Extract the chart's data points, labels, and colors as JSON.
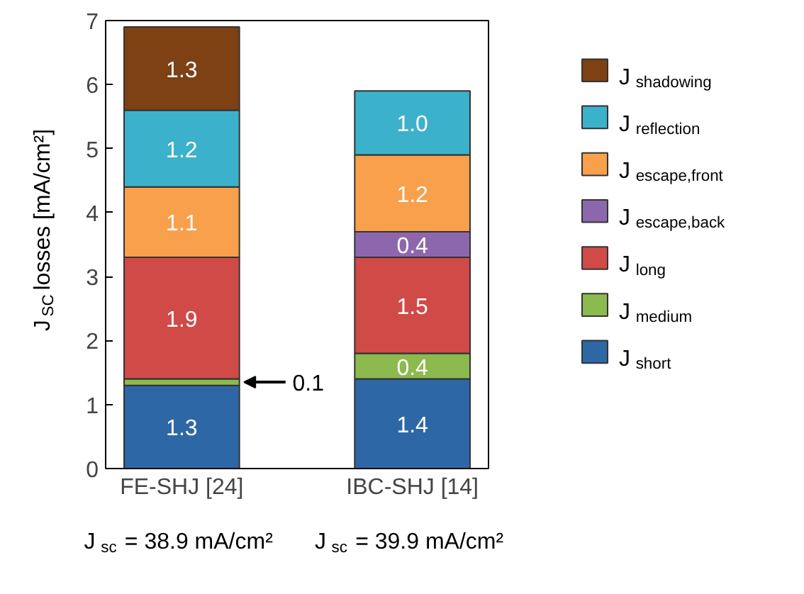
{
  "chart_data": {
    "type": "bar",
    "stacked": true,
    "ylabel": "J$_{SC}$ losses [mA/cm²]",
    "categories": [
      "FE-SHJ [24]",
      "IBC-SHJ [14]"
    ],
    "annotations": [
      "J$_{sc}$ = 38.9 mA/cm²",
      "J$_{sc}$ = 39.9 mA/cm²"
    ],
    "series": [
      {
        "name": "J$_{short}$",
        "color": "#2e67a6",
        "values": [
          1.3,
          1.4
        ],
        "value_labels": [
          "1.3",
          "1.4"
        ]
      },
      {
        "name": "J$_{medium}$",
        "color": "#8cba4e",
        "values": [
          0.1,
          0.4
        ],
        "value_labels": [
          "0.1",
          "0.4"
        ]
      },
      {
        "name": "J$_{long}$",
        "color": "#d04a47",
        "values": [
          1.9,
          1.5
        ],
        "value_labels": [
          "1.9",
          "1.5"
        ]
      },
      {
        "name": "J$_{escape,back}$",
        "color": "#8d67ae",
        "values": [
          null,
          0.4
        ],
        "value_labels": [
          null,
          "0.4"
        ]
      },
      {
        "name": "J$_{escape,front}$",
        "color": "#f8a04c",
        "values": [
          1.1,
          1.2
        ],
        "value_labels": [
          "1.1",
          "1.2"
        ]
      },
      {
        "name": "J$_{reflection}$",
        "color": "#3cb1cb",
        "values": [
          1.2,
          1.0
        ],
        "value_labels": [
          "1.2",
          "1.0"
        ]
      },
      {
        "name": "J$_{shadowing}$",
        "color": "#7d4114",
        "values": [
          1.3,
          null
        ],
        "value_labels": [
          "1.3",
          null
        ]
      }
    ],
    "ylim": [
      0,
      7
    ],
    "yticks": [
      0,
      1,
      2,
      3,
      4,
      5,
      6,
      7
    ],
    "grid": false,
    "legend": "right",
    "data_labels": true
  }
}
